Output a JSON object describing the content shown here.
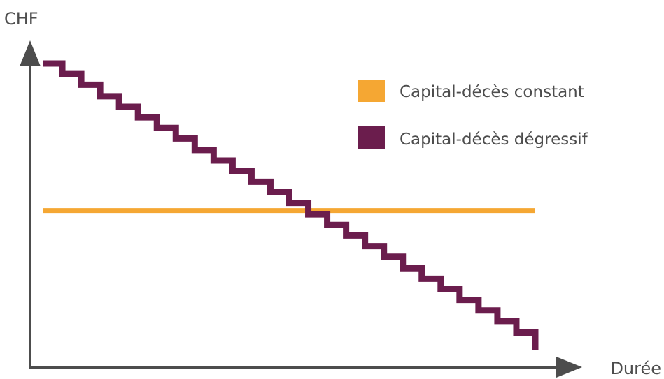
{
  "chart_data": {
    "type": "line",
    "ylabel": "CHF",
    "xlabel": "Durée",
    "xlim": [
      0,
      26
    ],
    "ylim": [
      0,
      34
    ],
    "grid": false,
    "legend_position": "top-right",
    "series": [
      {
        "name": "Capital-décès constant",
        "color": "#f5a733",
        "style": "line",
        "x": [
          0,
          26
        ],
        "y": [
          16.3,
          16.3
        ]
      },
      {
        "name": "Capital-décès dégressif",
        "color": "#6b1d4d",
        "style": "step",
        "x": [
          0,
          1,
          2,
          3,
          4,
          5,
          6,
          7,
          8,
          9,
          10,
          11,
          12,
          13,
          14,
          15,
          16,
          17,
          18,
          19,
          20,
          21,
          22,
          23,
          24,
          25,
          26
        ],
        "y": [
          31.6,
          30.5,
          29.4,
          28.2,
          27.1,
          26.0,
          24.9,
          23.8,
          22.6,
          21.5,
          20.4,
          19.3,
          18.2,
          17.1,
          15.9,
          14.8,
          13.7,
          12.6,
          11.5,
          10.3,
          9.2,
          8.1,
          7.0,
          5.9,
          4.8,
          3.6,
          2.5
        ]
      }
    ]
  }
}
